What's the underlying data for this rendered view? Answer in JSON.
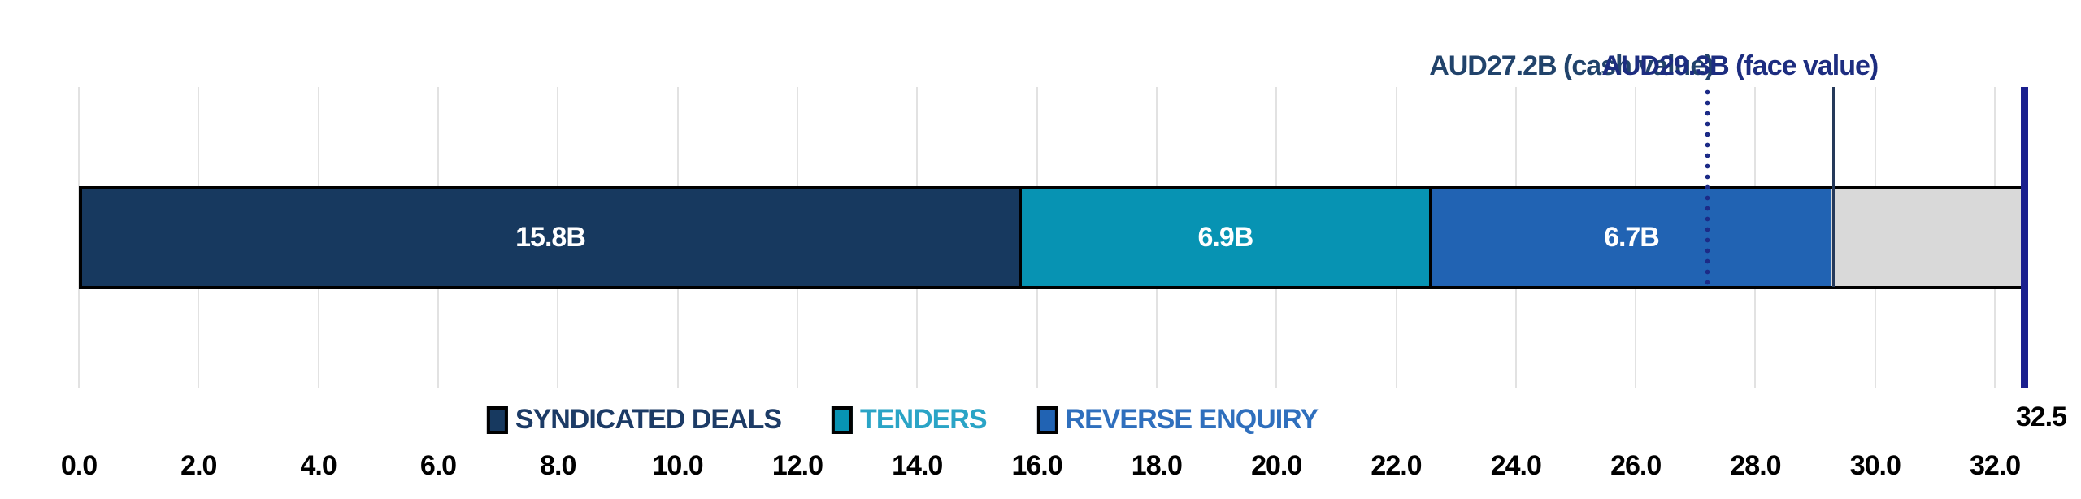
{
  "chart_data": {
    "type": "bar",
    "orientation": "horizontal-stacked",
    "title": "",
    "xlim": [
      0,
      32.5
    ],
    "grid": true,
    "legend_position": "bottom-center",
    "x_ticks": [
      0,
      2,
      4,
      6,
      8,
      10,
      12,
      14,
      16,
      18,
      20,
      22,
      24,
      26,
      28,
      30,
      32
    ],
    "x_tick_labels": [
      "0.0",
      "2.0",
      "4.0",
      "6.0",
      "8.0",
      "10.0",
      "12.0",
      "14.0",
      "16.0",
      "18.0",
      "20.0",
      "22.0",
      "24.0",
      "26.0",
      "28.0",
      "30.0",
      "32.0"
    ],
    "series": [
      {
        "name": "SYNDICATED DEALS",
        "value": 15.8,
        "bar_label": "15.8B",
        "color": "#17395f",
        "legend_text_color": "#1c3b66",
        "in_legend": true
      },
      {
        "name": "TENDERS",
        "value": 6.9,
        "bar_label": "6.9B",
        "color": "#0793b3",
        "legend_text_color": "#2aa4c6",
        "in_legend": true
      },
      {
        "name": "REVERSE ENQUIRY",
        "value": 6.7,
        "bar_label": "6.7B",
        "color": "#2163b3",
        "legend_text_color": "#2f6fbd",
        "in_legend": true
      },
      {
        "name": "",
        "value": 3.2,
        "bar_label": "",
        "color": "#d9d9d9",
        "in_legend": false
      }
    ],
    "annotations": [
      {
        "id": "cash-value",
        "text": "AUD27.2B (cash value)",
        "value": 27.2,
        "line_style": "dotted",
        "text_color": "#21436b",
        "line_color": "#1c2b87"
      },
      {
        "id": "face-value",
        "text": "AUD29.3B (face value)",
        "value": 29.3,
        "line_style": "solid-thin",
        "text_color": "#1d2d80",
        "line_color": "#25395a"
      },
      {
        "id": "total",
        "text": "32.5",
        "value": 32.5,
        "line_style": "solid-thick",
        "text_color": "#000000",
        "line_color": "#1a1f8e"
      }
    ]
  }
}
